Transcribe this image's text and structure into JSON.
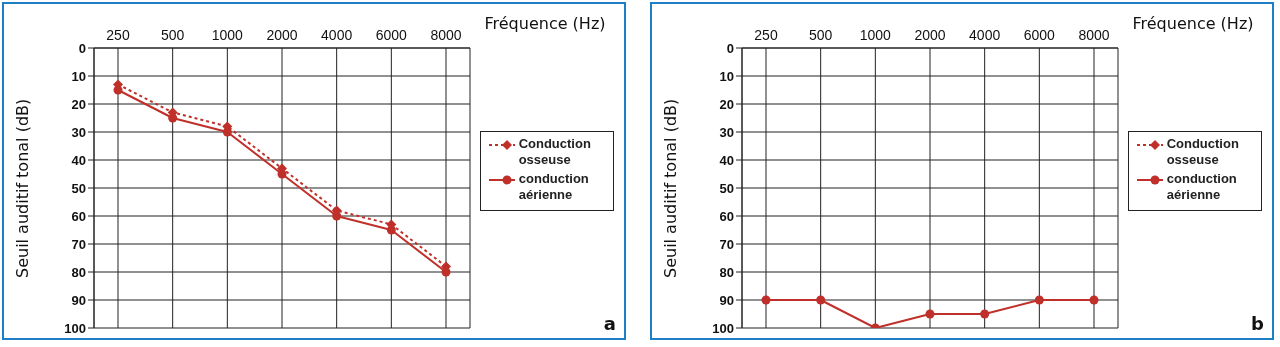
{
  "chart_data": [
    {
      "type": "line",
      "xlabel": "Fréquence (Hz)",
      "ylabel": "Seuil auditif tonal (dB)",
      "categories": [
        "250",
        "500",
        "1000",
        "2000",
        "4000",
        "6000",
        "8000"
      ],
      "ylim": [
        100,
        0
      ],
      "yticks": [
        0,
        10,
        20,
        30,
        40,
        50,
        60,
        70,
        80,
        90,
        100
      ],
      "grid": true,
      "legend": "right",
      "annotations": [
        "a"
      ],
      "series": [
        {
          "name": "Conduction osseuse",
          "color": "#c0302a",
          "marker": "diamond",
          "line_style": "dotted",
          "values": [
            13,
            23,
            28,
            43,
            58,
            63,
            78
          ]
        },
        {
          "name": "conduction aérienne",
          "color": "#c0302a",
          "marker": "circle",
          "line_style": "solid",
          "values": [
            15,
            25,
            30,
            45,
            60,
            65,
            80
          ]
        }
      ]
    },
    {
      "type": "line",
      "xlabel": "Fréquence (Hz)",
      "ylabel": "Seuil auditif tonal (dB)",
      "categories": [
        "250",
        "500",
        "1000",
        "2000",
        "4000",
        "6000",
        "8000"
      ],
      "ylim": [
        100,
        0
      ],
      "yticks": [
        0,
        10,
        20,
        30,
        40,
        50,
        60,
        70,
        80,
        90,
        100
      ],
      "grid": true,
      "legend": "right",
      "annotations": [
        "b"
      ],
      "series": [
        {
          "name": "Conduction osseuse",
          "color": "#c0302a",
          "marker": "diamond",
          "line_style": "dotted",
          "values": [
            null,
            null,
            null,
            null,
            null,
            null,
            null
          ]
        },
        {
          "name": "conduction aérienne",
          "color": "#c0302a",
          "marker": "circle",
          "line_style": "solid",
          "values": [
            90,
            90,
            100,
            95,
            95,
            90,
            90
          ]
        }
      ]
    }
  ]
}
